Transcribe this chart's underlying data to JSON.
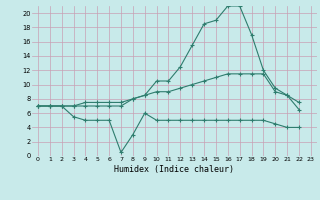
{
  "x": [
    0,
    1,
    2,
    3,
    4,
    5,
    6,
    7,
    8,
    9,
    10,
    11,
    12,
    13,
    14,
    15,
    16,
    17,
    18,
    19,
    20,
    21,
    22,
    23
  ],
  "line1": [
    7.0,
    7.0,
    7.0,
    7.0,
    7.0,
    7.0,
    7.0,
    7.0,
    8.0,
    8.5,
    10.5,
    10.5,
    12.5,
    15.5,
    18.5,
    19.0,
    21.0,
    21.0,
    17.0,
    12.0,
    9.5,
    8.5,
    6.5,
    null
  ],
  "line2": [
    7.0,
    7.0,
    7.0,
    7.0,
    7.5,
    7.5,
    7.5,
    7.5,
    8.0,
    8.5,
    9.0,
    9.0,
    9.5,
    10.0,
    10.5,
    11.0,
    11.5,
    11.5,
    11.5,
    11.5,
    9.0,
    8.5,
    7.5,
    null
  ],
  "line3": [
    7.0,
    7.0,
    7.0,
    5.5,
    5.0,
    5.0,
    5.0,
    0.5,
    3.0,
    6.0,
    5.0,
    5.0,
    5.0,
    5.0,
    5.0,
    5.0,
    5.0,
    5.0,
    5.0,
    5.0,
    4.5,
    4.0,
    4.0,
    null
  ],
  "line_color": "#2e7d6e",
  "bg_color": "#c8eaea",
  "grid_color": "#c8a0b4",
  "xlabel": "Humidex (Indice chaleur)",
  "xlim": [
    -0.5,
    23.5
  ],
  "ylim": [
    0,
    21
  ],
  "xticks": [
    0,
    1,
    2,
    3,
    4,
    5,
    6,
    7,
    8,
    9,
    10,
    11,
    12,
    13,
    14,
    15,
    16,
    17,
    18,
    19,
    20,
    21,
    22,
    23
  ],
  "yticks": [
    0,
    2,
    4,
    6,
    8,
    10,
    12,
    14,
    16,
    18,
    20
  ],
  "marker": "+"
}
